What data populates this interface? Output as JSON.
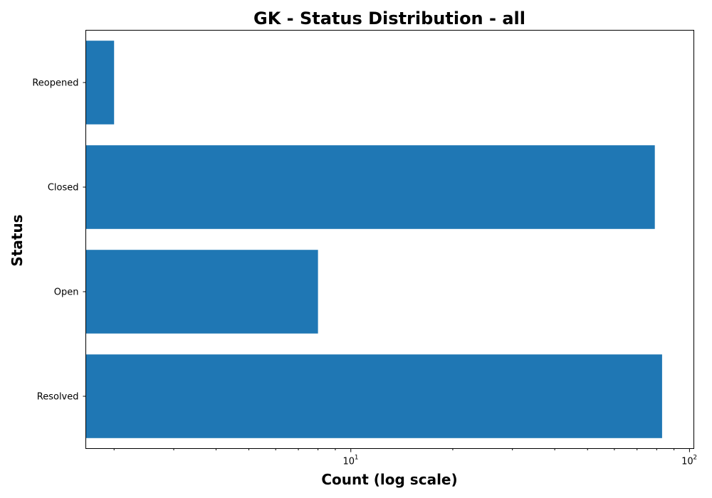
{
  "chart_data": {
    "type": "bar",
    "orientation": "horizontal",
    "title": "GK - Status Distribution - all",
    "xlabel": "Count (log scale)",
    "ylabel": "Status",
    "x_scale": "log",
    "xlim": [
      1.65,
      103
    ],
    "major_ticks": [
      {
        "value": 10,
        "base": "10",
        "exponent": "1"
      },
      {
        "value": 100,
        "base": "10",
        "exponent": "2"
      }
    ],
    "categories": [
      "Resolved",
      "Open",
      "Closed",
      "Reopened"
    ],
    "values": [
      83,
      8,
      79,
      2
    ],
    "bar_color": "#1f77b4",
    "grid": false,
    "legend": "none"
  }
}
